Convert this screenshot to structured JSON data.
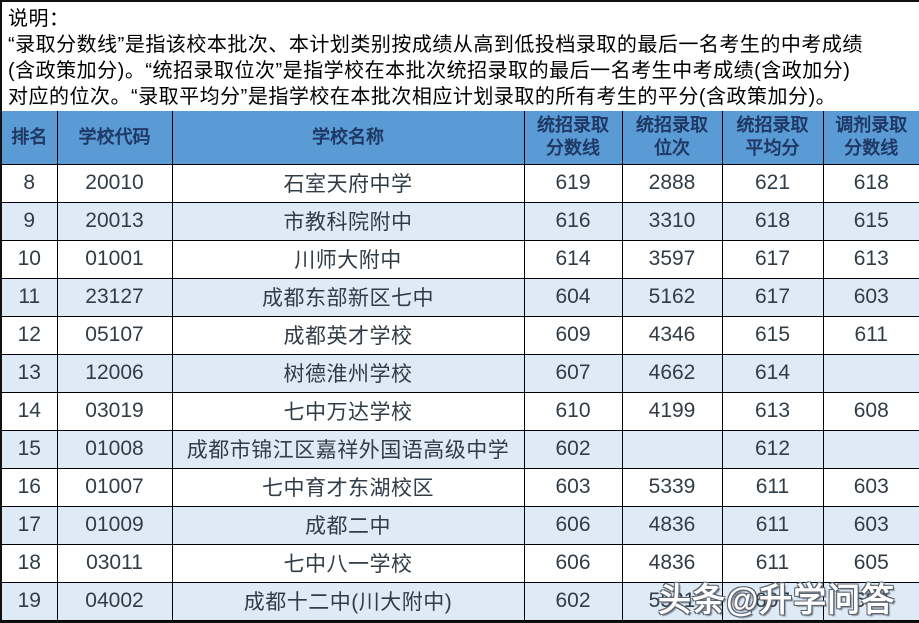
{
  "note": {
    "lines": [
      "说明：",
      "“录取分数线”是指该校本批次、本计划类别按成绩从高到低投档录取的最后一名考生的中考成绩",
      "(含政策加分)。“统招录取位次”是指学校在本批次统招录取的最后一名考生中考成绩(含政加分)",
      "对应的位次。“录取平均分”是指学校在本批次相应计划录取的所有考生的平分(含政策加分)。"
    ]
  },
  "table": {
    "columns": [
      "排名",
      "学校代码",
      "学校名称",
      "统招录取\n分数线",
      "统招录取\n位次",
      "统招录取\n平均分",
      "调剂录取\n分数线"
    ],
    "rows": [
      [
        "8",
        "20010",
        "石室天府中学",
        "619",
        "2888",
        "621",
        "618"
      ],
      [
        "9",
        "20013",
        "市教科院附中",
        "616",
        "3310",
        "618",
        "615"
      ],
      [
        "10",
        "01001",
        "川师大附中",
        "614",
        "3597",
        "617",
        "613"
      ],
      [
        "11",
        "23127",
        "成都东部新区七中",
        "604",
        "5162",
        "617",
        "603"
      ],
      [
        "12",
        "05107",
        "成都英才学校",
        "609",
        "4346",
        "615",
        "611"
      ],
      [
        "13",
        "12006",
        "树德淮州学校",
        "607",
        "4662",
        "614",
        ""
      ],
      [
        "14",
        "03019",
        "七中万达学校",
        "610",
        "4199",
        "613",
        "608"
      ],
      [
        "15",
        "01008",
        "成都市锦江区嘉祥外国语高级中学",
        "602",
        "",
        "612",
        ""
      ],
      [
        "16",
        "01007",
        "七中育才东湖校区",
        "603",
        "5339",
        "611",
        "603"
      ],
      [
        "17",
        "01009",
        "成都二中",
        "606",
        "4836",
        "611",
        "603"
      ],
      [
        "18",
        "03011",
        "七中八一学校",
        "606",
        "4836",
        "611",
        "605"
      ],
      [
        "19",
        "04002",
        "成都十二中(川大附中)",
        "602",
        "5521",
        "607",
        "602"
      ]
    ]
  },
  "watermark": {
    "text": "头条@升学问答"
  },
  "colors": {
    "header_bg": "#5B9BD5",
    "header_text": "#1F3864",
    "row_alt_bg": "#DEEBF7",
    "row_bg": "#FFFFFF",
    "cell_text": "#323C46",
    "border": "#000000"
  }
}
